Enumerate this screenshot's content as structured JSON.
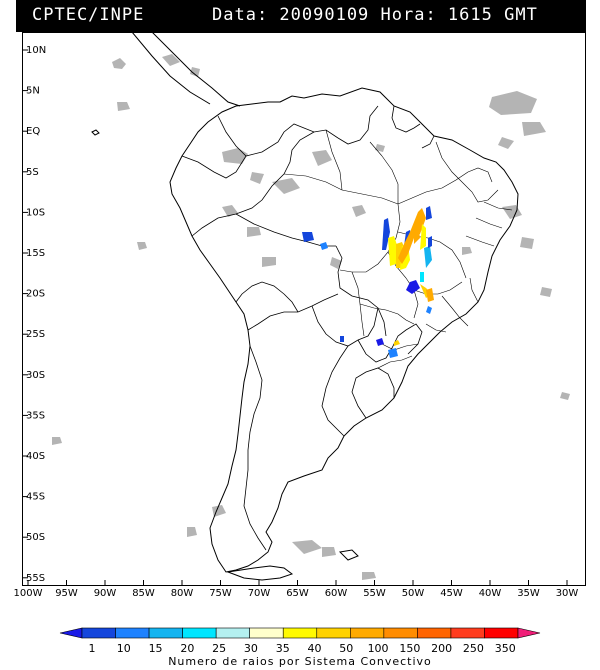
{
  "header": {
    "source": "CPTEC/INPE",
    "datetime": "Data: 20090109 Hora: 1615 GMT"
  },
  "map": {
    "lat_labels": [
      "10N",
      "5N",
      "EQ",
      "5S",
      "10S",
      "15S",
      "20S",
      "25S",
      "30S",
      "35S",
      "40S",
      "45S",
      "50S",
      "55S"
    ],
    "lon_labels": [
      "100W",
      "95W",
      "90W",
      "85W",
      "80W",
      "75W",
      "70W",
      "65W",
      "60W",
      "55W",
      "50W",
      "45W",
      "40W",
      "35W",
      "30W"
    ],
    "cloud_color": "#b4b4b4",
    "border_color": "#000000"
  },
  "legend": {
    "caption": "Numero de raios por Sistema Convectivo",
    "thresholds": [
      "1",
      "10",
      "15",
      "20",
      "25",
      "30",
      "35",
      "40",
      "50",
      "100",
      "150",
      "200",
      "250",
      "350"
    ],
    "colors": [
      "#1a1ae6",
      "#1446dc",
      "#1e82ff",
      "#14b4f0",
      "#00e6ff",
      "#b4f0f0",
      "#ffffcc",
      "#fffa00",
      "#ffd200",
      "#ffaa00",
      "#ff8c00",
      "#ff6400",
      "#ff3c1e",
      "#ff0000",
      "#f01e78"
    ]
  }
}
